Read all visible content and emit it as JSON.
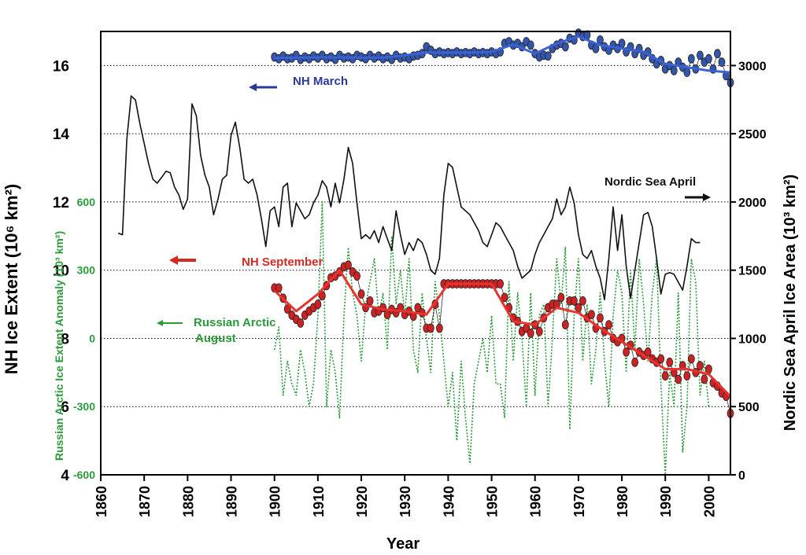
{
  "chart_data": {
    "type": "line",
    "x_label": "Year",
    "y_label": "NH Ice Extent (10⁶ km²)",
    "y2_label": "Nordic Sea April Ice Area (10³ km²)",
    "y3_label": "Russian Arctic  Ice Extent Anomaly (10³ km²)",
    "xlim": [
      1860,
      2005
    ],
    "xticks": [
      1860,
      1870,
      1880,
      1890,
      1900,
      1910,
      1920,
      1930,
      1940,
      1950,
      1960,
      1970,
      1980,
      1990,
      2000
    ],
    "ylim": [
      4,
      17
    ],
    "yticks": [
      4,
      6,
      8,
      10,
      12,
      14,
      16
    ],
    "y2lim": [
      0,
      3250
    ],
    "y2ticks": [
      0,
      500,
      1000,
      1500,
      2000,
      2500,
      3000
    ],
    "y3lim": [
      -600,
      1350
    ],
    "y3ticks": [
      -600,
      -300,
      0,
      300,
      600
    ],
    "grid": true,
    "annotations": [
      {
        "text": [
          "NH March"
        ],
        "color": "#2b3a9a"
      },
      {
        "text": [
          "Nordic Sea April"
        ],
        "color": "#111111"
      },
      {
        "text": [
          "NH September"
        ],
        "color": "#d42a22"
      },
      {
        "text": [
          "Russian Arctic",
          "August"
        ],
        "color": "#2a9a3a"
      }
    ],
    "series": [
      {
        "name": "Russian Arctic August",
        "axis": "y3",
        "color": "#2a9a3a",
        "line_style": "dotted",
        "x": [
          1900,
          1901,
          1902,
          1903,
          1904,
          1905,
          1906,
          1907,
          1908,
          1909,
          1910,
          1911,
          1912,
          1913,
          1914,
          1915,
          1916,
          1917,
          1918,
          1919,
          1920,
          1921,
          1922,
          1923,
          1924,
          1925,
          1926,
          1927,
          1928,
          1929,
          1930,
          1931,
          1932,
          1933,
          1934,
          1935,
          1936,
          1937,
          1938,
          1939,
          1940,
          1941,
          1942,
          1943,
          1944,
          1945,
          1946,
          1947,
          1948,
          1949,
          1950,
          1951,
          1952,
          1953,
          1954,
          1955,
          1956,
          1957,
          1958,
          1959,
          1960,
          1961,
          1962,
          1963,
          1964,
          1965,
          1966,
          1967,
          1968,
          1969,
          1970,
          1971,
          1972,
          1973,
          1974,
          1975,
          1976,
          1977,
          1978,
          1979,
          1980,
          1981,
          1982,
          1983,
          1984,
          1985,
          1986,
          1987,
          1988,
          1989,
          1990,
          1991,
          1992,
          1993,
          1994,
          1995,
          1996,
          1997,
          1998,
          1999,
          2000
        ],
        "values": [
          -50,
          50,
          -250,
          -100,
          -200,
          -250,
          -50,
          -150,
          -300,
          -200,
          100,
          600,
          -300,
          -50,
          -150,
          -350,
          100,
          400,
          200,
          100,
          -100,
          150,
          250,
          350,
          100,
          200,
          -50,
          450,
          150,
          300,
          100,
          350,
          -50,
          -150,
          200,
          0,
          -150,
          250,
          100,
          -100,
          -300,
          -150,
          -450,
          -100,
          -350,
          -550,
          -200,
          -100,
          0,
          -150,
          100,
          -200,
          -200,
          -350,
          250,
          -100,
          200,
          0,
          -300,
          200,
          -250,
          100,
          150,
          -300,
          0,
          350,
          150,
          400,
          -400,
          100,
          350,
          -100,
          150,
          -200,
          -50,
          200,
          -100,
          -300,
          100,
          300,
          200,
          -150,
          300,
          -50,
          350,
          150,
          -100,
          200,
          350,
          -200,
          -600,
          -150,
          -300,
          200,
          -500,
          -300,
          350,
          250,
          -250,
          -100,
          -300
        ]
      },
      {
        "name": "Nordic Sea April",
        "axis": "y2",
        "color": "#111111",
        "x": [
          1864,
          1865,
          1866,
          1867,
          1868,
          1869,
          1870,
          1871,
          1872,
          1873,
          1874,
          1875,
          1876,
          1877,
          1878,
          1879,
          1880,
          1881,
          1882,
          1883,
          1884,
          1885,
          1886,
          1887,
          1888,
          1889,
          1890,
          1891,
          1892,
          1893,
          1894,
          1895,
          1896,
          1897,
          1898,
          1899,
          1900,
          1901,
          1902,
          1903,
          1904,
          1905,
          1906,
          1907,
          1908,
          1909,
          1910,
          1911,
          1912,
          1913,
          1914,
          1915,
          1916,
          1917,
          1918,
          1919,
          1920,
          1921,
          1922,
          1923,
          1924,
          1925,
          1926,
          1927,
          1928,
          1929,
          1930,
          1931,
          1932,
          1933,
          1934,
          1935,
          1936,
          1937,
          1938,
          1939,
          1940,
          1941,
          1942,
          1943,
          1944,
          1945,
          1946,
          1947,
          1948,
          1949,
          1950,
          1951,
          1952,
          1953,
          1954,
          1955,
          1956,
          1957,
          1958,
          1959,
          1960,
          1961,
          1962,
          1963,
          1964,
          1965,
          1966,
          1967,
          1968,
          1969,
          1970,
          1971,
          1972,
          1973,
          1974,
          1975,
          1976,
          1977,
          1978,
          1979,
          1980,
          1981,
          1982,
          1983,
          1984,
          1985,
          1986,
          1987,
          1988,
          1989,
          1990,
          1991,
          1992,
          1993,
          1994,
          1995,
          1996,
          1997,
          1998
        ],
        "values": [
          1772,
          1760,
          2457,
          2777,
          2748,
          2574,
          2428,
          2283,
          2167,
          2138,
          2179,
          2225,
          2214,
          2109,
          2051,
          1946,
          2022,
          2719,
          2632,
          2341,
          2196,
          2109,
          1906,
          2022,
          2167,
          2196,
          2487,
          2585,
          2400,
          2167,
          2138,
          2167,
          2051,
          1877,
          1673,
          1935,
          1964,
          1819,
          2109,
          2138,
          1819,
          1993,
          1935,
          1877,
          1906,
          1993,
          2051,
          2156,
          2109,
          1964,
          2138,
          1993,
          2167,
          2400,
          2283,
          1993,
          1731,
          1760,
          1731,
          1790,
          1702,
          1819,
          1731,
          1644,
          1935,
          1760,
          1615,
          1702,
          1644,
          1731,
          1702,
          1615,
          1499,
          1470,
          1586,
          2051,
          2283,
          2254,
          2109,
          1964,
          1935,
          1906,
          1848,
          1790,
          1702,
          1673,
          1760,
          1848,
          1819,
          1760,
          1702,
          1644,
          1528,
          1441,
          1470,
          1499,
          1615,
          1702,
          1760,
          1819,
          1877,
          2022,
          1906,
          1964,
          2109,
          1993,
          1760,
          1615,
          1586,
          1644,
          1528,
          1441,
          1284,
          1586,
          1964,
          1644,
          1906,
          1528,
          1296,
          1499,
          1702,
          1906,
          1923,
          1819,
          1586,
          1325,
          1470,
          1482,
          1470,
          1412,
          1354,
          1528,
          1731,
          1702,
          1702
        ]
      },
      {
        "name": "NH March",
        "axis": "y",
        "color": "#3355aa",
        "marker": "circle",
        "x": [
          1900,
          1901,
          1902,
          1903,
          1904,
          1905,
          1906,
          1907,
          1908,
          1909,
          1910,
          1911,
          1912,
          1913,
          1914,
          1915,
          1916,
          1917,
          1918,
          1919,
          1920,
          1921,
          1922,
          1923,
          1924,
          1925,
          1926,
          1927,
          1928,
          1929,
          1930,
          1931,
          1932,
          1933,
          1934,
          1935,
          1936,
          1937,
          1938,
          1939,
          1940,
          1941,
          1942,
          1943,
          1944,
          1945,
          1946,
          1947,
          1948,
          1949,
          1950,
          1951,
          1952,
          1953,
          1954,
          1955,
          1956,
          1957,
          1958,
          1959,
          1960,
          1961,
          1962,
          1963,
          1964,
          1965,
          1966,
          1967,
          1968,
          1969,
          1970,
          1971,
          1972,
          1973,
          1974,
          1975,
          1976,
          1977,
          1978,
          1979,
          1980,
          1981,
          1982,
          1983,
          1984,
          1985,
          1986,
          1987,
          1988,
          1989,
          1990,
          1991,
          1992,
          1993,
          1994,
          1995,
          1996,
          1997,
          1998,
          1999,
          2000,
          2001,
          2002,
          2003,
          2004,
          2005
        ],
        "values": [
          16.25,
          16.2,
          16.28,
          16.2,
          16.22,
          16.3,
          16.18,
          16.25,
          16.2,
          16.28,
          16.22,
          16.3,
          16.2,
          16.25,
          16.18,
          16.3,
          16.22,
          16.25,
          16.2,
          16.3,
          16.25,
          16.2,
          16.3,
          16.22,
          16.28,
          16.2,
          16.25,
          16.18,
          16.3,
          16.22,
          16.25,
          16.2,
          16.28,
          16.3,
          16.35,
          16.55,
          16.45,
          16.35,
          16.4,
          16.35,
          16.38,
          16.35,
          16.4,
          16.35,
          16.38,
          16.35,
          16.4,
          16.35,
          16.38,
          16.35,
          16.4,
          16.35,
          16.4,
          16.65,
          16.7,
          16.6,
          16.65,
          16.55,
          16.7,
          16.6,
          16.35,
          16.25,
          16.3,
          16.28,
          16.5,
          16.6,
          16.65,
          16.55,
          16.8,
          16.75,
          16.95,
          16.85,
          16.9,
          16.6,
          16.5,
          16.75,
          16.55,
          16.45,
          16.6,
          16.5,
          16.65,
          16.4,
          16.55,
          16.35,
          16.5,
          16.3,
          16.4,
          16.2,
          16.05,
          16.15,
          15.9,
          16.0,
          15.85,
          16.1,
          15.95,
          15.8,
          16.2,
          15.9,
          16.3,
          16.1,
          16.2,
          15.9,
          16.35,
          16.1,
          15.7,
          15.5
        ]
      },
      {
        "axis": "y",
        "color": "#3a62d6",
        "line_width": 3,
        "x": [
          1900,
          1905,
          1910,
          1915,
          1920,
          1925,
          1930,
          1935,
          1940,
          1945,
          1950,
          1955,
          1960,
          1965,
          1970,
          1975,
          1980,
          1985,
          1990,
          1995,
          2000,
          2005
        ],
        "values": [
          16.22,
          16.23,
          16.24,
          16.24,
          16.23,
          16.23,
          16.3,
          16.38,
          16.38,
          16.38,
          16.4,
          16.62,
          16.35,
          16.65,
          16.85,
          16.6,
          16.5,
          16.4,
          16.05,
          15.95,
          15.85,
          15.8
        ]
      },
      {
        "name": "NH September",
        "axis": "y",
        "color": "#cc2222",
        "marker": "circle",
        "x": [
          1900,
          1901,
          1902,
          1903,
          1904,
          1905,
          1906,
          1907,
          1908,
          1909,
          1910,
          1911,
          1912,
          1913,
          1914,
          1915,
          1916,
          1917,
          1918,
          1919,
          1920,
          1921,
          1922,
          1923,
          1924,
          1925,
          1926,
          1927,
          1928,
          1929,
          1930,
          1931,
          1932,
          1933,
          1934,
          1935,
          1936,
          1937,
          1938,
          1939,
          1940,
          1941,
          1942,
          1943,
          1944,
          1945,
          1946,
          1947,
          1948,
          1949,
          1950,
          1951,
          1952,
          1953,
          1954,
          1955,
          1956,
          1957,
          1958,
          1959,
          1960,
          1961,
          1962,
          1963,
          1964,
          1965,
          1966,
          1967,
          1968,
          1969,
          1970,
          1971,
          1972,
          1973,
          1974,
          1975,
          1976,
          1977,
          1978,
          1979,
          1980,
          1981,
          1982,
          1983,
          1984,
          1985,
          1986,
          1987,
          1988,
          1989,
          1990,
          1991,
          1992,
          1993,
          1994,
          1995,
          1996,
          1997,
          1998,
          1999,
          2000,
          2001,
          2002,
          2003,
          2004,
          2005
        ],
        "values": [
          9.48,
          9.48,
          9.18,
          8.86,
          8.68,
          8.56,
          8.45,
          8.68,
          8.8,
          8.9,
          9.0,
          9.25,
          9.55,
          9.78,
          9.83,
          9.95,
          10.1,
          10.15,
          9.95,
          9.83,
          9.3,
          8.9,
          9.1,
          8.75,
          8.8,
          8.9,
          8.7,
          8.85,
          8.75,
          8.9,
          8.7,
          8.8,
          8.65,
          8.9,
          8.75,
          8.3,
          8.3,
          9.0,
          8.3,
          9.6,
          9.6,
          9.6,
          9.6,
          9.6,
          9.6,
          9.6,
          9.6,
          9.6,
          9.6,
          9.6,
          9.6,
          9.6,
          9.6,
          9.2,
          8.9,
          8.6,
          8.5,
          8.2,
          8.3,
          8.15,
          8.4,
          8.2,
          8.6,
          8.9,
          9.0,
          9.0,
          9.2,
          8.4,
          9.1,
          9.1,
          8.9,
          9.1,
          8.6,
          8.7,
          8.3,
          8.6,
          8.2,
          8.4,
          8.0,
          7.9,
          8.0,
          7.6,
          7.8,
          7.3,
          7.6,
          7.5,
          7.6,
          7.4,
          7.3,
          7.4,
          6.9,
          7.3,
          7.0,
          6.8,
          7.2,
          6.9,
          7.4,
          7.0,
          7.2,
          6.8,
          7.1,
          6.7,
          6.6,
          6.4,
          6.3,
          5.8
        ]
      },
      {
        "axis": "y",
        "color": "#e8332e",
        "line_width": 3,
        "x": [
          1900,
          1905,
          1910,
          1915,
          1920,
          1925,
          1930,
          1935,
          1940,
          1945,
          1950,
          1955,
          1960,
          1965,
          1970,
          1975,
          1980,
          1985,
          1990,
          1995,
          2000,
          2005
        ],
        "values": [
          9.4,
          8.8,
          9.3,
          10.0,
          9.0,
          8.85,
          8.8,
          8.7,
          9.6,
          9.6,
          9.6,
          8.5,
          8.4,
          8.9,
          8.75,
          8.3,
          7.9,
          7.5,
          7.1,
          7.1,
          6.95,
          6.3
        ]
      }
    ]
  }
}
